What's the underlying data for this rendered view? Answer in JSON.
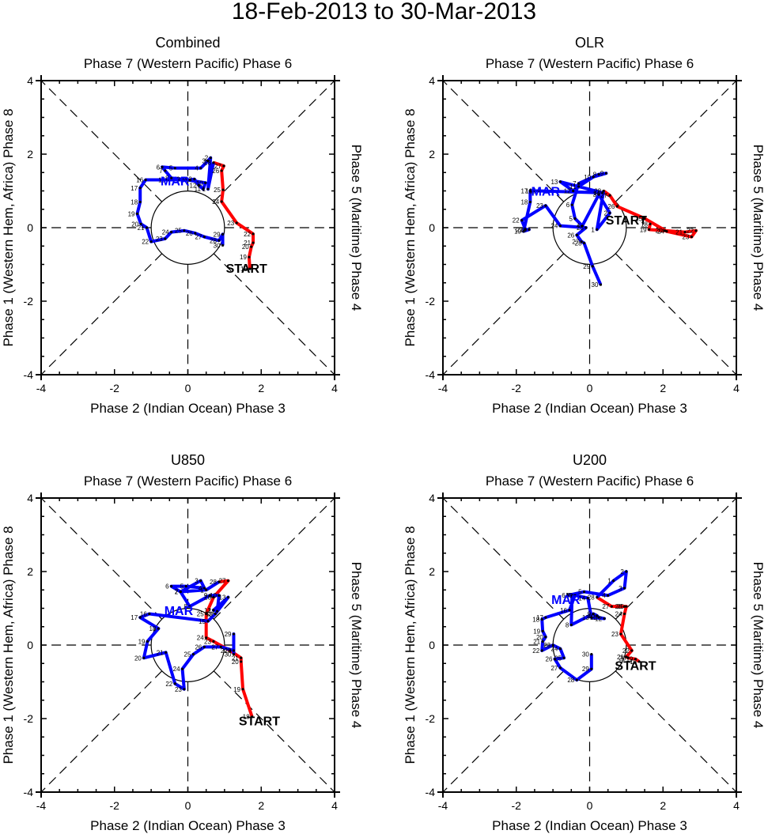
{
  "figure": {
    "title": "18-Feb-2013 to 30-Mar-2013"
  },
  "axes_text": {
    "top": "Phase 7 (Western Pacific) Phase 6",
    "bottom": "Phase 2 (Indian Ocean) Phase 3",
    "left": "Phase 1 (Western Hem, Africa) Phase 8",
    "right": "Phase 5 (Maritime) Phase 4",
    "start_label": "START",
    "month_label": "MAR"
  },
  "colors": {
    "feb": "#ff0000",
    "mar": "#0000ff",
    "axis": "#000000"
  },
  "chart_data": [
    {
      "type": "line",
      "title": "Combined",
      "xlim": [
        -4,
        4
      ],
      "ylim": [
        -4,
        4
      ],
      "xticks": [
        "-4",
        "-2",
        "0",
        "2",
        "4"
      ],
      "yticks": [
        "-4",
        "-2",
        "0",
        "2",
        "4"
      ],
      "unit_circle": 1,
      "start": [
        1.6,
        -1.1
      ],
      "mar_label_pos": [
        -0.35,
        1.28
      ],
      "series": [
        {
          "name": "Feb",
          "color": "#ff0000",
          "days": [
            18,
            19,
            20,
            21,
            22,
            23,
            24,
            25,
            26,
            27,
            28
          ],
          "x": [
            1.69,
            1.67,
            1.73,
            1.78,
            1.78,
            1.33,
            0.92,
            0.96,
            0.92,
            0.98,
            0.7
          ],
          "y": [
            -1.12,
            -0.8,
            -0.52,
            -0.41,
            -0.17,
            0.13,
            0.71,
            1.03,
            1.55,
            1.68,
            1.77
          ]
        },
        {
          "name": "Mar",
          "color": "#0000ff",
          "days": [
            1,
            2,
            3,
            4,
            5,
            6,
            7,
            8,
            9,
            10,
            11,
            12,
            13,
            14,
            15,
            16,
            17,
            18,
            19,
            20,
            21,
            22,
            23,
            24,
            25,
            26,
            27,
            28,
            29,
            30
          ],
          "x": [
            0.55,
            0.62,
            0.55,
            0.35,
            -0.35,
            -0.7,
            -0.62,
            -0.45,
            -0.15,
            0.48,
            0.42,
            0.3,
            0.18,
            0.05,
            -0.55,
            -1.15,
            -1.3,
            -1.3,
            -1.38,
            -1.28,
            -1.12,
            -1.0,
            -0.62,
            -0.45,
            -0.1,
            0.2,
            0.45,
            0.85,
            0.95,
            0.95
          ],
          "y": [
            1.05,
            1.9,
            1.82,
            1.62,
            1.62,
            1.65,
            1.55,
            1.35,
            1.32,
            1.22,
            1.05,
            1.15,
            1.32,
            1.3,
            1.3,
            1.3,
            1.08,
            0.7,
            0.38,
            0.1,
            0.0,
            -0.38,
            -0.3,
            -0.12,
            -0.08,
            -0.15,
            -0.25,
            -0.35,
            -0.18,
            -0.48
          ]
        }
      ]
    },
    {
      "type": "line",
      "title": "OLR",
      "xlim": [
        -4,
        4
      ],
      "ylim": [
        -4,
        4
      ],
      "xticks": [
        "-4",
        "-2",
        "0",
        "2",
        "4"
      ],
      "yticks": [
        "-4",
        "-2",
        "0",
        "2",
        "4"
      ],
      "unit_circle": 1,
      "start": [
        1.0,
        0.22
      ],
      "mar_label_pos": [
        -1.2,
        1.0
      ],
      "series": [
        {
          "name": "Feb",
          "color": "#ff0000",
          "days": [
            18,
            19,
            20,
            21,
            22,
            23,
            24,
            25,
            26,
            27,
            28
          ],
          "x": [
            1.65,
            1.62,
            2.05,
            2.6,
            2.9,
            2.78,
            2.1,
            1.5,
            0.75,
            0.55,
            0.38
          ],
          "y": [
            0.1,
            -0.05,
            -0.08,
            -0.12,
            -0.08,
            -0.25,
            -0.1,
            0.25,
            0.58,
            0.88,
            1.0
          ],
          "label_days": [
            19,
            20,
            21,
            22,
            23,
            24,
            25,
            26,
            28
          ]
        },
        {
          "name": "Mar",
          "color": "#0000ff",
          "days": [
            1,
            2,
            3,
            4,
            5,
            6,
            7,
            8,
            9,
            10,
            11,
            12,
            13,
            14,
            15,
            16,
            17,
            18,
            19,
            20,
            21,
            22,
            23,
            24,
            25,
            26,
            27,
            28,
            29,
            30
          ],
          "x": [
            0.2,
            0.55,
            0.25,
            -0.2,
            -0.4,
            -0.48,
            -0.3,
            0.25,
            0.45,
            0.1,
            -0.3,
            -0.45,
            -0.8,
            0.35,
            -1.4,
            -1.5,
            -1.62,
            -1.62,
            -1.8,
            -1.65,
            -1.75,
            -1.85,
            -1.2,
            -0.8,
            -0.1,
            -0.35,
            -0.22,
            -0.15,
            0.08,
            0.3
          ],
          "y": [
            -0.05,
            0.4,
            0.9,
            0.05,
            0.25,
            0.62,
            1.2,
            1.45,
            1.48,
            1.38,
            1.12,
            1.0,
            1.25,
            0.95,
            1.0,
            1.0,
            1.0,
            0.7,
            -0.1,
            -0.05,
            -0.05,
            0.2,
            0.6,
            0.05,
            0.0,
            -0.2,
            -0.38,
            -0.42,
            -1.05,
            -1.55
          ],
          "label_days": [
            2,
            3,
            4,
            5,
            6,
            7,
            8,
            9,
            10,
            11,
            12,
            13,
            15,
            16,
            17,
            18,
            19,
            20,
            21,
            22,
            23,
            24,
            25,
            26,
            27,
            28,
            29,
            30
          ]
        }
      ]
    },
    {
      "type": "line",
      "title": "U850",
      "xlim": [
        -4,
        4
      ],
      "ylim": [
        -4,
        4
      ],
      "xticks": [
        "-4",
        "-2",
        "0",
        "2",
        "4"
      ],
      "yticks": [
        "-4",
        "-2",
        "0",
        "2",
        "4"
      ],
      "unit_circle": 1,
      "start": [
        1.95,
        -2.05
      ],
      "mar_label_pos": [
        -0.25,
        0.95
      ],
      "series": [
        {
          "name": "Feb",
          "color": "#ff0000",
          "days": [
            18,
            19,
            20,
            21,
            22,
            23,
            24,
            25,
            26,
            27,
            28
          ],
          "x": [
            1.75,
            1.5,
            1.45,
            1.45,
            1.15,
            0.7,
            0.5,
            0.5,
            0.7,
            1.1,
            0.85
          ],
          "y": [
            -1.95,
            -1.2,
            -0.45,
            -0.35,
            -0.15,
            0.1,
            0.2,
            0.85,
            1.3,
            1.75,
            1.72
          ]
        },
        {
          "name": "Mar",
          "color": "#0000ff",
          "days": [
            1,
            2,
            3,
            4,
            5,
            6,
            7,
            8,
            9,
            10,
            11,
            12,
            13,
            14,
            15,
            16,
            17,
            18,
            19,
            20,
            21,
            22,
            23,
            24,
            25,
            26,
            27,
            28,
            29,
            30
          ],
          "x": [
            0.5,
            -0.2,
            0.35,
            0.45,
            -0.05,
            -0.45,
            -0.2,
            0.05,
            0.6,
            0.85,
            0.8,
            0.7,
            1.1,
            0.75,
            0.55,
            -1.05,
            -1.3,
            -0.8,
            -1.1,
            -1.2,
            -0.6,
            -0.35,
            -0.1,
            -0.15,
            0.15,
            0.45,
            0.9,
            1.25,
            1.25,
            1.25
          ],
          "y": [
            1.5,
            1.45,
            1.75,
            1.55,
            1.6,
            1.6,
            1.45,
            1.05,
            1.35,
            1.35,
            0.92,
            0.95,
            1.3,
            0.85,
            0.65,
            0.85,
            0.75,
            0.45,
            0.1,
            -0.35,
            -0.2,
            -1.05,
            -1.2,
            -0.65,
            -0.25,
            -0.05,
            -0.05,
            -0.15,
            0.3,
            -0.25
          ]
        }
      ]
    },
    {
      "type": "line",
      "title": "U200",
      "xlim": [
        -4,
        4
      ],
      "ylim": [
        -4,
        4
      ],
      "xticks": [
        "-4",
        "-2",
        "0",
        "2",
        "4"
      ],
      "yticks": [
        "-4",
        "-2",
        "0",
        "2",
        "4"
      ],
      "unit_circle": 1,
      "start": [
        1.25,
        -0.55
      ],
      "mar_label_pos": [
        -0.65,
        1.25
      ],
      "series": [
        {
          "name": "Feb",
          "color": "#ff0000",
          "days": [
            18,
            19,
            20,
            21,
            22,
            23,
            24,
            25,
            26,
            27,
            28
          ],
          "x": [
            1.35,
            1.25,
            1.05,
            1.0,
            1.15,
            0.85,
            0.95,
            1.0,
            0.95,
            0.6,
            0.2
          ],
          "y": [
            -0.45,
            -0.38,
            -0.35,
            -0.32,
            -0.15,
            0.3,
            0.85,
            1.05,
            1.05,
            1.05,
            1.3
          ]
        },
        {
          "name": "Mar",
          "color": "#0000ff",
          "days": [
            1,
            2,
            3,
            4,
            5,
            6,
            7,
            8,
            9,
            10,
            11,
            12,
            13,
            14,
            15,
            16,
            17,
            18,
            19,
            20,
            21,
            22,
            23,
            24,
            25,
            26,
            27,
            28,
            29,
            30
          ],
          "x": [
            0.65,
            1.0,
            0.95,
            0.5,
            -0.15,
            -0.6,
            -0.48,
            -0.5,
            0.1,
            0.2,
            0.25,
            0.4,
            0.05,
            -0.05,
            -0.4,
            -0.55,
            -1.2,
            -1.3,
            -1.28,
            -1.2,
            -1.28,
            -1.3,
            -1.0,
            -0.8,
            -0.7,
            -0.95,
            -0.8,
            -0.35,
            0.05,
            0.05
          ],
          "y": [
            1.75,
            2.0,
            1.55,
            1.35,
            1.45,
            1.35,
            1.35,
            0.55,
            0.85,
            0.8,
            0.75,
            0.72,
            0.75,
            1.28,
            1.35,
            0.95,
            0.75,
            0.7,
            0.38,
            0.22,
            0.1,
            -0.15,
            0.0,
            -0.1,
            -0.35,
            -0.38,
            -0.62,
            -0.95,
            -0.65,
            -0.25
          ]
        }
      ]
    }
  ]
}
